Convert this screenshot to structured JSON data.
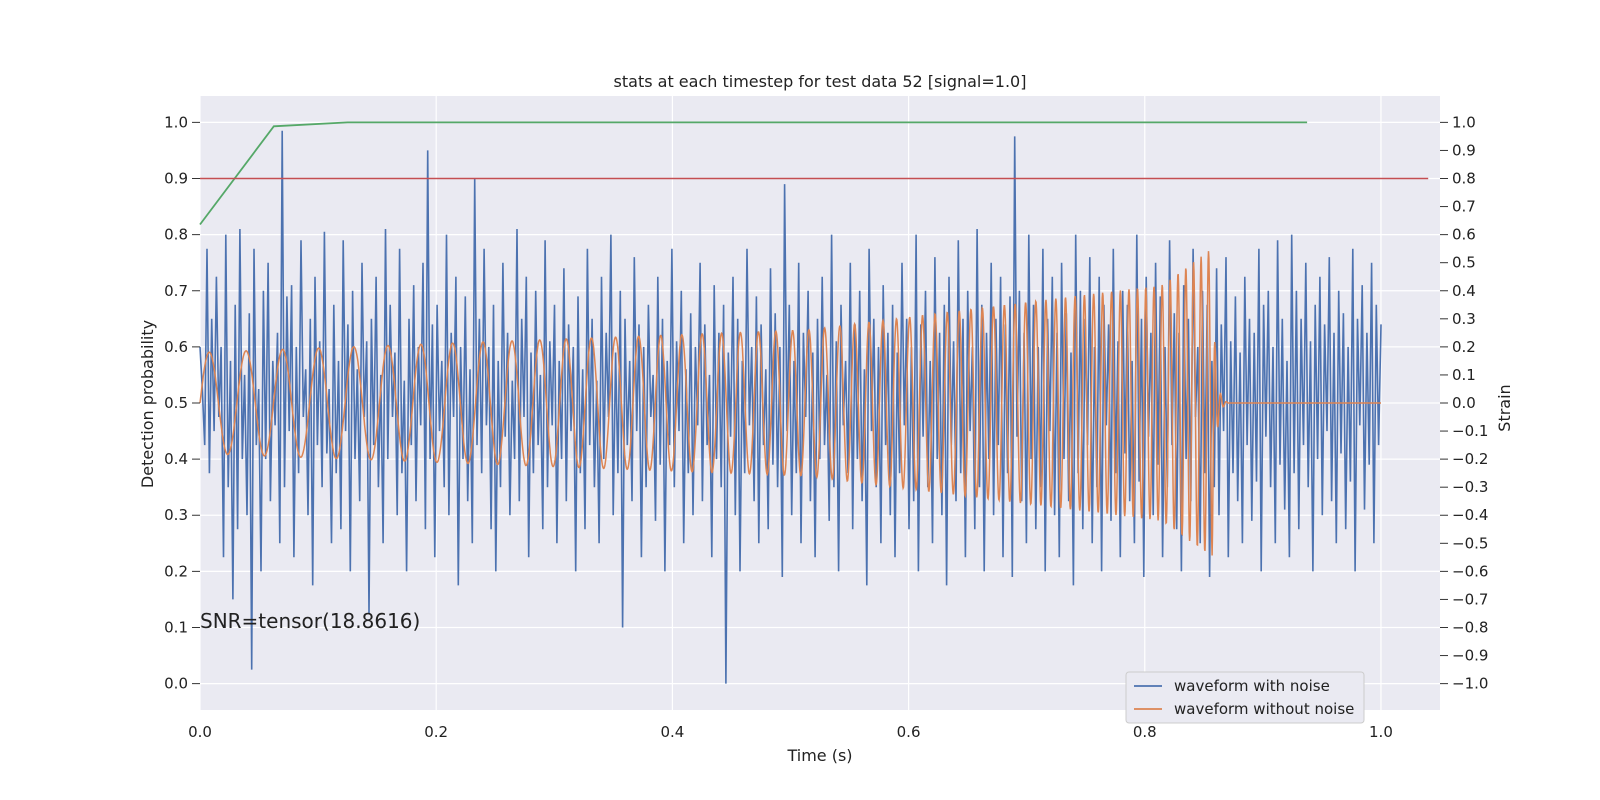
{
  "chart_data": {
    "type": "line",
    "title": "stats at each timestep for test data 52 [signal=1.0]",
    "xlabel": "Time (s)",
    "ylabel": "Detection probability",
    "y2label": "Strain",
    "xlim": [
      0.0,
      1.05
    ],
    "ylim": [
      -0.047,
      1.047
    ],
    "y2lim": [
      -1.094,
      1.094
    ],
    "grid": true,
    "x_ticks": [
      "0.0",
      "0.2",
      "0.4",
      "0.6",
      "0.8",
      "1.0"
    ],
    "y_ticks": [
      "0.0",
      "0.1",
      "0.2",
      "0.3",
      "0.4",
      "0.5",
      "0.6",
      "0.7",
      "0.8",
      "0.9",
      "1.0"
    ],
    "y2_ticks": [
      "−1.0",
      "−0.9",
      "−0.8",
      "−0.7",
      "−0.6",
      "−0.5",
      "−0.4",
      "−0.3",
      "−0.2",
      "−0.1",
      "0.0",
      "0.1",
      "0.2",
      "0.3",
      "0.4",
      "0.5",
      "0.6",
      "0.7",
      "0.8",
      "0.9",
      "1.0"
    ],
    "annotation": "SNR=tensor(18.8616)",
    "legend_position": "lower-right",
    "series": [
      {
        "name": "waveform with noise",
        "axis": "right",
        "color": "#4c72b0",
        "x_start": 0.0,
        "x_end": 1.0,
        "points": [
          0.2,
          0.05,
          -0.15,
          0.55,
          -0.25,
          0.3,
          -0.1,
          0.45,
          -0.05,
          0.2,
          -0.55,
          0.6,
          -0.3,
          0.15,
          -0.7,
          0.35,
          -0.45,
          0.62,
          -0.2,
          0.1,
          -0.4,
          0.32,
          -0.95,
          0.55,
          -0.15,
          0.05,
          -0.6,
          0.4,
          -0.2,
          0.5,
          -0.35,
          0.15,
          -0.08,
          0.25,
          -0.5,
          0.97,
          -0.3,
          0.38,
          -0.1,
          0.42,
          -0.55,
          0.2,
          -0.25,
          0.58,
          -0.05,
          0.12,
          -0.4,
          0.3,
          -0.65,
          0.45,
          -0.15,
          0.22,
          -0.3,
          0.61,
          -0.18,
          0.05,
          -0.5,
          0.35,
          -0.25,
          0.15,
          -0.45,
          0.58,
          -0.1,
          0.28,
          -0.6,
          0.4,
          -0.2,
          0.12,
          -0.35,
          0.5,
          -0.05,
          0.22,
          -0.75,
          0.3,
          -0.15,
          0.45,
          -0.3,
          0.1,
          -0.5,
          0.62,
          -0.2,
          0.35,
          -0.05,
          0.18,
          -0.4,
          0.55,
          -0.25,
          0.08,
          -0.6,
          0.3,
          -0.15,
          0.42,
          -0.35,
          0.2,
          -0.08,
          0.5,
          -0.45,
          0.9,
          -0.2,
          0.28,
          -0.55,
          0.35,
          -0.1,
          0.15,
          -0.3,
          0.6,
          -0.4,
          0.25,
          -0.05,
          0.45,
          -0.65,
          0.2,
          -0.2,
          0.38,
          -0.35,
          0.12,
          -0.5,
          0.8,
          -0.15,
          0.3,
          -0.25,
          0.55,
          -0.08,
          0.2,
          -0.45,
          0.35,
          -0.6,
          0.15,
          -0.3,
          0.5,
          -0.12,
          0.25,
          -0.4,
          0.08,
          -0.2,
          0.62,
          -0.35,
          0.3,
          -0.05,
          0.45,
          -0.55,
          0.18,
          -0.25,
          0.4,
          -0.15,
          0.1,
          -0.45,
          0.58,
          -0.3,
          0.22,
          -0.08,
          0.35,
          -0.5,
          0.15,
          -0.2,
          0.48,
          -0.35,
          0.28,
          -0.1,
          0.2,
          -0.6,
          0.38,
          -0.25,
          0.12,
          -0.45,
          0.55,
          -0.15,
          0.3,
          -0.3,
          0.08,
          -0.5,
          0.45,
          -0.2,
          0.25,
          -0.05,
          0.6,
          -0.4,
          0.18,
          -0.25,
          0.4,
          -0.8,
          0.3,
          -0.15,
          0.15,
          -0.35,
          0.52,
          -0.1,
          0.28,
          -0.55,
          0.2,
          -0.3,
          0.35,
          -0.05,
          0.1,
          -0.42,
          0.45,
          -0.22,
          0.3,
          -0.6,
          0.15,
          -0.15,
          0.55,
          -0.3,
          0.22,
          -0.1,
          0.4,
          -0.5,
          0.12,
          -0.25,
          0.32,
          -0.4,
          0.2,
          -0.08,
          0.5,
          -0.35,
          0.28,
          -0.15,
          0.1,
          -0.55,
          0.42,
          -0.2,
          0.25,
          -0.3,
          0.35,
          -1.0,
          0.18,
          -0.12,
          0.45,
          -0.4,
          0.3,
          -0.6,
          0.15,
          -0.25,
          0.55,
          -0.08,
          0.2,
          -0.35,
          0.38,
          -0.5,
          0.28,
          -0.15,
          0.12,
          -0.45,
          0.48,
          -0.22,
          0.32,
          -0.3,
          0.2,
          -0.62,
          0.78,
          -0.1,
          0.35,
          -0.4,
          0.15,
          -0.25,
          0.5,
          -0.5,
          0.25,
          -0.05,
          0.4,
          -0.35,
          0.18,
          -0.55,
          0.3,
          -0.2,
          0.45,
          -0.15,
          0.1,
          -0.42,
          0.6,
          -0.3,
          0.22,
          -0.6,
          0.35,
          -0.08,
          0.15,
          -0.25,
          0.5,
          -0.45,
          0.28,
          -0.2,
          0.4,
          -0.35,
          0.12,
          -0.65,
          0.55,
          -0.1,
          0.3,
          -0.3,
          0.2,
          -0.5,
          0.42,
          -0.15,
          0.25,
          -0.4,
          0.35,
          -0.55,
          0.18,
          -0.25,
          0.5,
          -0.08,
          0.3,
          -0.45,
          0.2,
          -0.35,
          0.6,
          -0.6,
          0.28,
          -0.12,
          0.4,
          -0.3,
          0.15,
          -0.5,
          0.52,
          -0.2,
          0.25,
          -0.4,
          0.35,
          -0.65,
          0.45,
          -0.15,
          0.22,
          -0.35,
          0.58,
          -0.25,
          0.3,
          -0.55,
          0.4,
          -0.1,
          0.2,
          -0.45,
          0.62,
          -0.3,
          0.35,
          -0.6,
          0.25,
          -0.2,
          0.5,
          -0.4,
          0.3,
          -0.15,
          0.45,
          -0.55,
          0.28,
          -0.25,
          0.38,
          -0.62,
          0.95,
          -0.12,
          0.4,
          -0.35,
          0.25,
          -0.5,
          0.6,
          -0.2,
          0.35,
          -0.45,
          0.2,
          -0.3,
          0.55,
          -0.6,
          0.3,
          -0.1,
          0.45,
          -0.4,
          0.25,
          -0.55,
          0.5,
          -0.2,
          0.32,
          -0.35,
          0.18,
          -0.65,
          0.6,
          -0.25,
          0.4,
          -0.45,
          0.3,
          -0.15,
          0.52,
          -0.5,
          0.2,
          -0.3,
          0.45,
          -0.6,
          0.35,
          -0.08,
          0.28,
          -0.42,
          0.55,
          -0.25,
          0.22,
          -0.55,
          0.4,
          -0.18,
          0.35,
          -0.35,
          0.15,
          -0.5,
          0.6,
          -0.28,
          0.3,
          -0.62,
          0.45,
          -0.12,
          0.25,
          -0.4,
          0.5,
          -0.22,
          0.38,
          -0.55,
          0.2,
          -0.3,
          0.58,
          -0.15,
          0.32,
          -0.45,
          0.25,
          -0.6,
          0.42,
          -0.2,
          0.3,
          -0.35,
          0.55,
          -0.05,
          0.2,
          -0.5,
          0.4,
          -0.25,
          0.35,
          -0.62,
          0.15,
          -0.3,
          0.48,
          -0.4,
          0.28,
          -0.1,
          0.52,
          -0.55,
          0.22,
          -0.25,
          0.38,
          -0.35,
          0.18,
          -0.5,
          0.45,
          -0.15,
          0.3,
          -0.42,
          0.25,
          -0.28,
          0.55,
          -0.6,
          0.35,
          -0.12,
          0.4,
          -0.3,
          0.2,
          -0.5,
          0.58,
          -0.22,
          0.3,
          -0.38,
          0.15,
          -0.55,
          0.6,
          -0.25,
          0.4,
          -0.45,
          0.3,
          -0.15,
          0.5,
          -0.3,
          0.22,
          -0.6,
          0.35,
          -0.2,
          0.45,
          -0.4,
          0.28,
          -0.1,
          0.52,
          -0.35,
          0.25,
          -0.5,
          0.4,
          -0.18,
          0.32,
          -0.45,
          0.2,
          -0.28,
          0.55,
          -0.6,
          0.3,
          -0.08,
          0.42,
          -0.38,
          0.25,
          -0.22,
          0.5,
          -0.5,
          0.35,
          -0.15,
          0.28
        ]
      },
      {
        "name": "waveform without noise",
        "axis": "right",
        "color": "#dd8452",
        "x_start": 0.0,
        "x_end": 1.0,
        "model": "chirp",
        "f_start_hz": 32,
        "f_end_hz": 160,
        "chirp_power": 2.2,
        "amp_start": 0.18,
        "amp_mid": 0.26,
        "amp_late": 0.42,
        "peak": 0.55,
        "merger_t": 0.857,
        "ringdown_end_t": 0.87,
        "post_value": 0.0
      },
      {
        "name": "",
        "axis": "left",
        "color": "#55a868",
        "x": [
          0.0,
          0.0625,
          0.125,
          0.9375
        ],
        "y": [
          0.818,
          0.993,
          1.0,
          1.0
        ]
      },
      {
        "name": "",
        "axis": "left",
        "color": "#c44e52",
        "x": [
          0.0,
          1.04
        ],
        "y": [
          0.9,
          0.9
        ]
      }
    ]
  }
}
